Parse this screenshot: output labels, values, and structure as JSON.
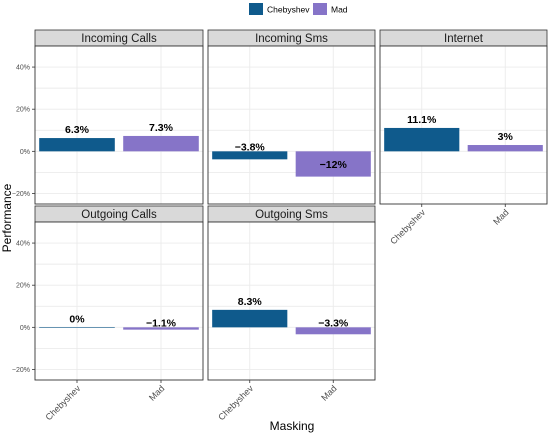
{
  "chart_data": {
    "type": "bar",
    "xlabel": "Masking",
    "ylabel": "Performance",
    "ylim": [
      -25,
      50
    ],
    "y_ticks": [
      -20,
      0,
      20,
      40
    ],
    "y_tick_labels": [
      "−20%",
      "0%",
      "20%",
      "40%"
    ],
    "grid": true,
    "legend_position": "top",
    "categories": [
      "Chebyshev",
      "Mad"
    ],
    "legend": [
      {
        "name": "Chebyshev",
        "color": "#0f5a8c"
      },
      {
        "name": "Mad",
        "color": "#8674c8"
      }
    ],
    "panels": [
      {
        "title": "Incoming Calls",
        "values": [
          6.3,
          7.3
        ],
        "labels": [
          "6.3%",
          "7.3%"
        ]
      },
      {
        "title": "Incoming Sms",
        "values": [
          -3.8,
          -12
        ],
        "labels": [
          "−3.8%",
          "−12%"
        ]
      },
      {
        "title": "Internet",
        "values": [
          11.1,
          3
        ],
        "labels": [
          "11.1%",
          "3%"
        ]
      },
      {
        "title": "Outgoing Calls",
        "values": [
          0,
          -1.1
        ],
        "labels": [
          "0%",
          "−1.1%"
        ]
      },
      {
        "title": "Outgoing Sms",
        "values": [
          8.3,
          -3.3
        ],
        "labels": [
          "8.3%",
          "−3.3%"
        ]
      }
    ]
  }
}
